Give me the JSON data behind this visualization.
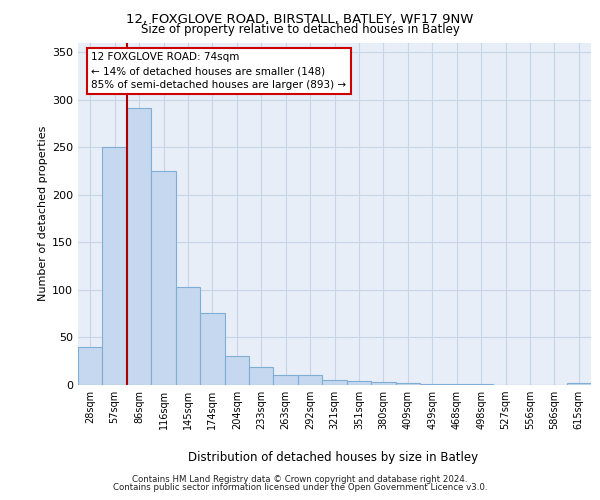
{
  "title1": "12, FOXGLOVE ROAD, BIRSTALL, BATLEY, WF17 9NW",
  "title2": "Size of property relative to detached houses in Batley",
  "xlabel": "Distribution of detached houses by size in Batley",
  "ylabel": "Number of detached properties",
  "categories": [
    "28sqm",
    "57sqm",
    "86sqm",
    "116sqm",
    "145sqm",
    "174sqm",
    "204sqm",
    "233sqm",
    "263sqm",
    "292sqm",
    "321sqm",
    "351sqm",
    "380sqm",
    "409sqm",
    "439sqm",
    "468sqm",
    "498sqm",
    "527sqm",
    "556sqm",
    "586sqm",
    "615sqm"
  ],
  "values": [
    40,
    250,
    291,
    225,
    103,
    76,
    30,
    19,
    11,
    11,
    5,
    4,
    3,
    2,
    1,
    1,
    1,
    0,
    0,
    0,
    2
  ],
  "bar_color": "#c5d8f0",
  "bar_edge_color": "#7faed4",
  "annotation_line1": "12 FOXGLOVE ROAD: 74sqm",
  "annotation_line2": "← 14% of detached houses are smaller (148)",
  "annotation_line3": "85% of semi-detached houses are larger (893) →",
  "vline_color": "#aa0000",
  "vline_x_pos": 1.5,
  "ylim": [
    0,
    360
  ],
  "yticks": [
    0,
    50,
    100,
    150,
    200,
    250,
    300,
    350
  ],
  "grid_color": "#c8d4e8",
  "background_color": "#e8eef8",
  "footer1": "Contains HM Land Registry data © Crown copyright and database right 2024.",
  "footer2": "Contains public sector information licensed under the Open Government Licence v3.0."
}
